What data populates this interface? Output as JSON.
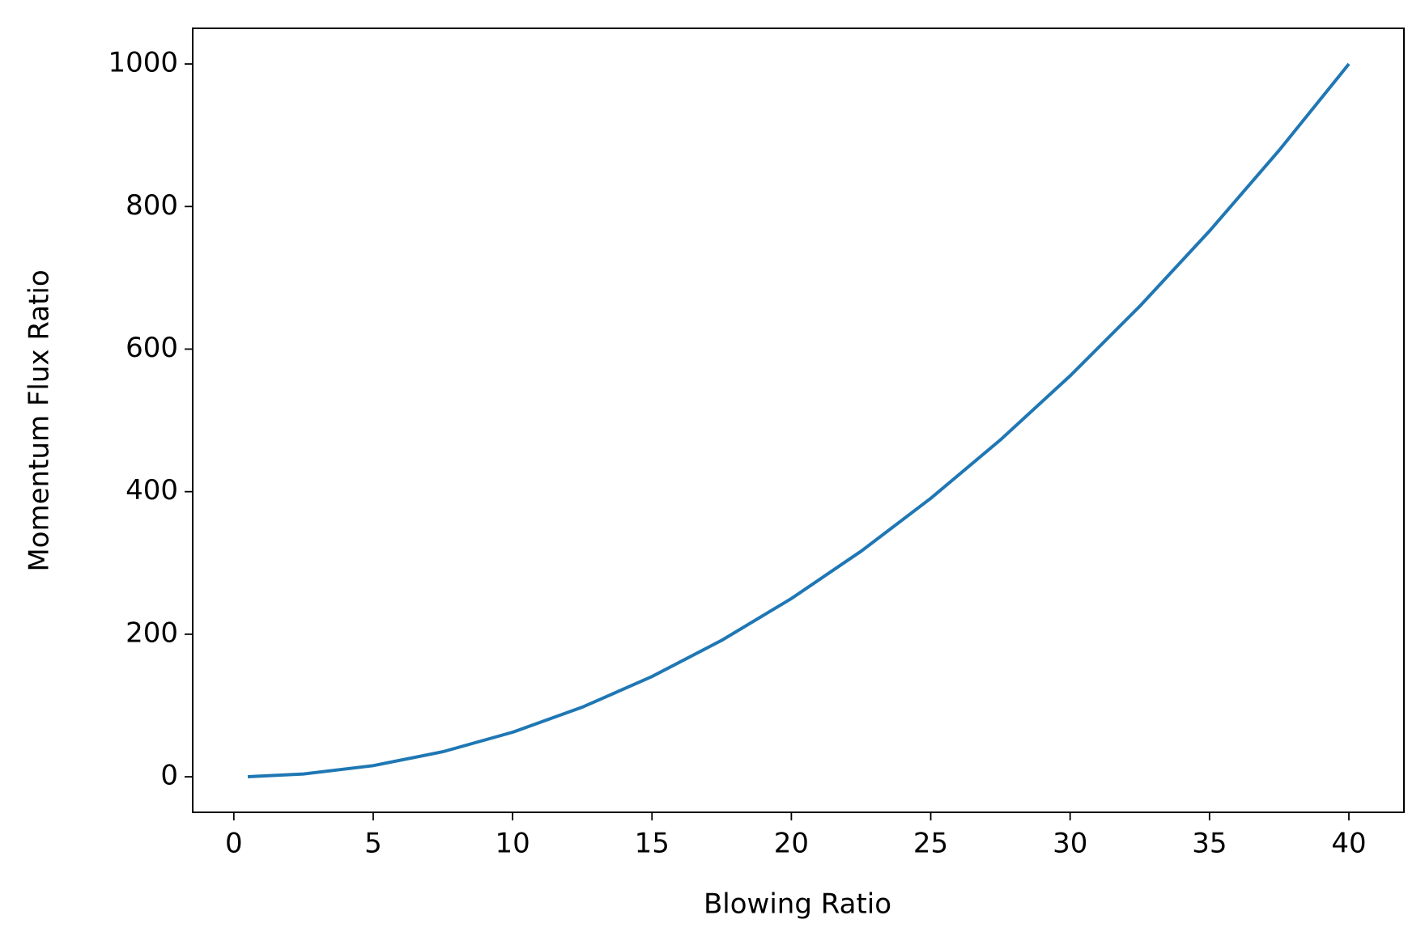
{
  "chart_data": {
    "type": "line",
    "x_label": "Blowing Ratio",
    "y_label": "Momentum Flux Ratio",
    "x": [
      0.5,
      2.5,
      5,
      7.5,
      10,
      12.5,
      15,
      17.5,
      20,
      22.5,
      25,
      27.5,
      30,
      32.5,
      35,
      37.5,
      40
    ],
    "series": [
      {
        "color": "#1f77b4",
        "values": [
          0.15625,
          3.90625,
          15.625,
          35.15625,
          62.5,
          97.65625,
          140.625,
          191.40625,
          250,
          316.40625,
          390.625,
          472.65625,
          562.5,
          660.15625,
          765.625,
          878.90625,
          1000
        ]
      }
    ],
    "xlim": [
      -1.475,
      41.975
    ],
    "xticks": [
      0,
      5,
      10,
      15,
      20,
      25,
      30,
      35,
      40
    ],
    "ylim": [
      -49.84,
      1050
    ],
    "yticks": [
      0,
      200,
      400,
      600,
      800,
      1000
    ],
    "grid": false
  }
}
